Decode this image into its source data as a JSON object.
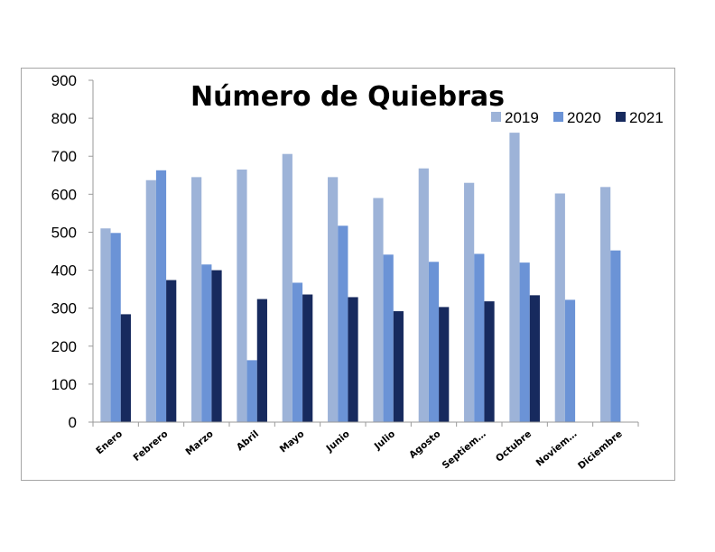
{
  "chart_data": {
    "type": "bar",
    "title": "Número de Quiebras",
    "categories": [
      "Enero",
      "Febrero",
      "Marzo",
      "Abril",
      "Mayo",
      "Junio",
      "Julio",
      "Agosto",
      "Septiem…",
      "Octubre",
      "Noviem…",
      "Diciembre"
    ],
    "series": [
      {
        "name": "2019",
        "color": "#9db3d8",
        "values": [
          510,
          637,
          645,
          665,
          706,
          645,
          590,
          668,
          630,
          762,
          602,
          619
        ]
      },
      {
        "name": "2020",
        "color": "#6b93d6",
        "values": [
          498,
          663,
          415,
          163,
          367,
          517,
          441,
          422,
          443,
          420,
          322,
          452
        ]
      },
      {
        "name": "2021",
        "color": "#172a5e",
        "values": [
          284,
          374,
          400,
          324,
          336,
          329,
          292,
          303,
          318,
          334,
          null,
          null
        ]
      }
    ],
    "ylim": [
      0,
      900
    ],
    "yticks": [
      0,
      100,
      200,
      300,
      400,
      500,
      600,
      700,
      800,
      900
    ],
    "legend_position": "top-right",
    "grid": false
  }
}
